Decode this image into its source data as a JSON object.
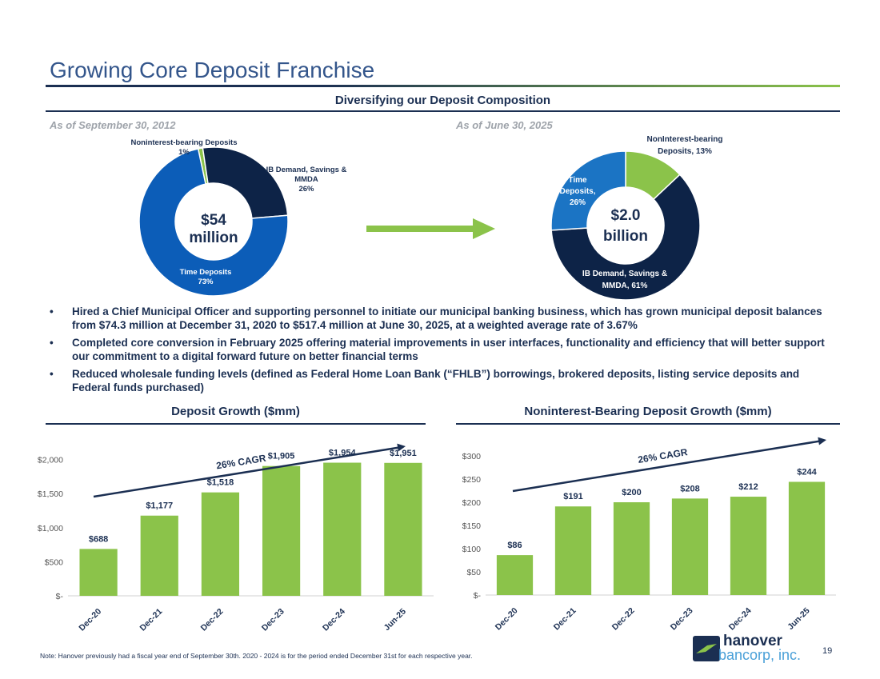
{
  "title": "Growing Core Deposit Franchise",
  "composition": {
    "heading": "Diversifying our Deposit Composition",
    "left": {
      "as_of": "As of September 30, 2012",
      "center_line1": "$54",
      "center_line2": "million",
      "slices": [
        {
          "label_line1": "Noninterest-bearing Deposits",
          "label_line2": "1%",
          "value": 1,
          "color": "#8bc34a"
        },
        {
          "label_line1": "IB Demand, Savings &",
          "label_line2": "MMDA",
          "label_line3": "26%",
          "value": 26,
          "color": "#0d2347"
        },
        {
          "label_line1": "Time Deposits",
          "label_line2": "73%",
          "value": 73,
          "color": "#0c5db8"
        }
      ]
    },
    "right": {
      "as_of": "As of June 30, 2025",
      "center_line1": "$2.0",
      "center_line2": "billion",
      "slices": [
        {
          "label_line1": "NonInterest-bearing",
          "label_line2": "Deposits, 13%",
          "value": 13,
          "color": "#8bc34a"
        },
        {
          "label_line1": "IB Demand, Savings &",
          "label_line2": "MMDA, 61%",
          "value": 61,
          "color": "#0d2347"
        },
        {
          "label_line1": "Time",
          "label_line2": "Deposits,",
          "label_line3": "26%",
          "value": 26,
          "color": "#1b74c4"
        }
      ]
    }
  },
  "bullets": [
    "Hired a Chief Municipal Officer and supporting personnel to initiate our municipal banking business, which has grown municipal deposit balances from $74.3 million at December 31, 2020 to $517.4 million at June 30, 2025, at a weighted average rate of 3.67%",
    "Completed core conversion in February 2025 offering material improvements in user interfaces, functionality and efficiency that will better support our commitment to a digital forward future on better financial terms",
    "Reduced wholesale funding levels (defined as Federal Home Loan Bank (“FHLB”) borrowings, brokered deposits, listing service deposits and Federal funds purchased)"
  ],
  "bullet_char": "•",
  "chart_data": [
    {
      "type": "bar",
      "title": "Deposit Growth ($mm)",
      "categories": [
        "Dec-20",
        "Dec-21",
        "Dec-22",
        "Dec-23",
        "Dec-24",
        "Jun-25"
      ],
      "values": [
        688,
        1177,
        1518,
        1905,
        1954,
        1951
      ],
      "data_labels": [
        "$688",
        "$1,177",
        "$1,518",
        "$1,905",
        "$1,954",
        "$1,951"
      ],
      "yticks": [
        0,
        500,
        1000,
        1500,
        2000
      ],
      "ytick_labels": [
        "$-",
        "$500",
        "$1,000",
        "$1,500",
        "$2,000"
      ],
      "ylim": [
        0,
        2500
      ],
      "annotation": "26% CAGR",
      "bar_color": "#8bc34a"
    },
    {
      "type": "bar",
      "title": "Noninterest-Bearing Deposit Growth ($mm)",
      "categories": [
        "Dec-20",
        "Dec-21",
        "Dec-22",
        "Dec-23",
        "Dec-24",
        "Jun-25"
      ],
      "values": [
        86,
        191,
        200,
        208,
        212,
        244
      ],
      "data_labels": [
        "$86",
        "$191",
        "$200",
        "$208",
        "$212",
        "$244"
      ],
      "yticks": [
        0,
        50,
        100,
        150,
        200,
        250,
        300
      ],
      "ytick_labels": [
        "$-",
        "$50",
        "$100",
        "$150",
        "$200",
        "$250",
        "$300"
      ],
      "ylim": [
        0,
        300
      ],
      "annotation": "26% CAGR",
      "bar_color": "#8bc34a"
    }
  ],
  "note": "Note: Hanover previously had a fiscal year end of September 30th. 2020 - 2024 is for the period ended December 31st for each respective year.",
  "page_number": "19",
  "logo": {
    "line1": "hanover",
    "line2": "bancorp, inc."
  }
}
